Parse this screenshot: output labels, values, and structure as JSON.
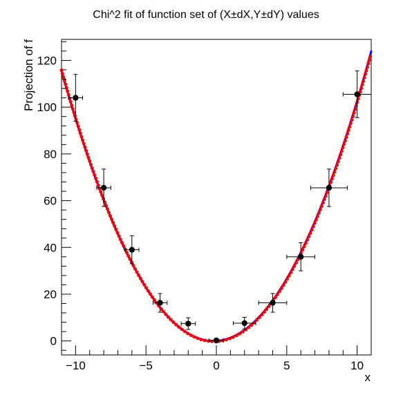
{
  "chart_data": {
    "type": "scatter",
    "title": "Chi^2 fit of function set of (X±dX,Y±dY) values",
    "xlabel": "x",
    "ylabel": "Projection of f",
    "xlim": [
      -11,
      11
    ],
    "ylim": [
      -6,
      129
    ],
    "x_ticks": [
      -10,
      -5,
      0,
      5,
      10
    ],
    "y_ticks": [
      0,
      20,
      40,
      60,
      80,
      100,
      120
    ],
    "grid": false,
    "points": [
      {
        "x": -10,
        "y": 104,
        "dx": 0.5,
        "dy": 10
      },
      {
        "x": -8,
        "y": 65.5,
        "dx": 0.5,
        "dy": 8
      },
      {
        "x": -6,
        "y": 39,
        "dx": 0.5,
        "dy": 6
      },
      {
        "x": -4,
        "y": 16.3,
        "dx": 0.5,
        "dy": 4
      },
      {
        "x": -2,
        "y": 7.4,
        "dx": 0.5,
        "dy": 2.5
      },
      {
        "x": 0,
        "y": 0.2,
        "dx": 0.5,
        "dy": 0.8
      },
      {
        "x": 2,
        "y": 7.6,
        "dx": 0.8,
        "dy": 2.5
      },
      {
        "x": 4,
        "y": 16.3,
        "dx": 1.0,
        "dy": 4
      },
      {
        "x": 6,
        "y": 36,
        "dx": 1.0,
        "dy": 6
      },
      {
        "x": 8,
        "y": 65.5,
        "dx": 1.3,
        "dy": 8
      },
      {
        "x": 10,
        "y": 105.5,
        "dx": 1.0,
        "dy": 10
      }
    ],
    "fit_curves": [
      {
        "style": "solid",
        "color": "#0000ff",
        "a": 0.989,
        "b": 0.38,
        "c": 0.0
      },
      {
        "style": "dotted",
        "color": "#ff0000",
        "a": 0.989,
        "b": 0.33,
        "c": -0.2
      }
    ],
    "colors": {
      "points": "#000000",
      "frame": "#000000"
    }
  }
}
